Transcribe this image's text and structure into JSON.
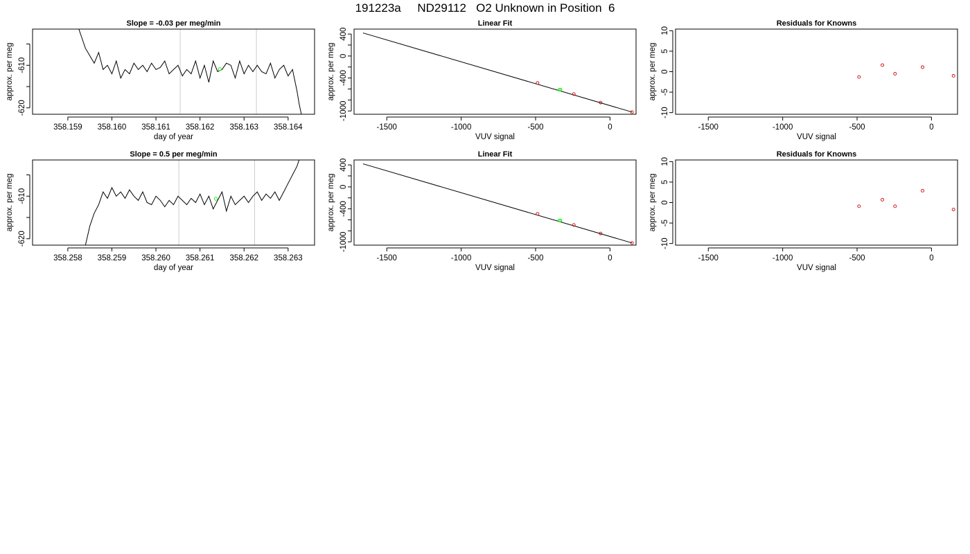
{
  "title": "191223a     ND29112   O2 Unknown in Position  6",
  "colors": {
    "axis": "#000000",
    "line": "#000000",
    "known_point": "#cc0000",
    "unknown_point": "#22ee22",
    "vline": "#cccccc"
  },
  "chart_data": [
    {
      "type": "line",
      "title": "Slope =  -0.03  per meg/min",
      "xlabel": "day of year",
      "ylabel": "approx. per meg",
      "xlim": [
        358.1582,
        358.1646
      ],
      "ylim": [
        -621.5,
        -601.5
      ],
      "x_ticks": [
        358.159,
        358.16,
        358.161,
        358.162,
        358.163,
        358.164
      ],
      "x_tick_labels": [
        "358.159",
        "358.160",
        "358.161",
        "358.162",
        "358.163",
        "358.164"
      ],
      "y_ticks": [
        -620,
        -615,
        -610,
        -605
      ],
      "y_tick_labels": [
        "-620",
        "",
        "-610",
        ""
      ],
      "vlines": [
        358.16155,
        358.16328
      ],
      "highlight": {
        "x": 358.16245,
        "y": -610.9
      },
      "series": [
        {
          "x": [
            358.15925,
            358.1594,
            358.1596,
            358.1597,
            358.1598,
            358.1599,
            358.16,
            358.1601,
            358.1602,
            358.1603,
            358.1604,
            358.1605,
            358.1606,
            358.1607,
            358.1608,
            358.1609,
            358.161,
            358.1611,
            358.1612,
            358.1613,
            358.1614,
            358.1615,
            358.1616,
            358.1617,
            358.1618,
            358.1619,
            358.162,
            358.1621,
            358.1622,
            358.1623,
            358.1624,
            358.1625,
            358.1626,
            358.1627,
            358.1628,
            358.1629,
            358.163,
            358.1631,
            358.1632,
            358.1633,
            358.1634,
            358.1635,
            358.1636,
            358.1637,
            358.1638,
            358.1639,
            358.164,
            358.1641,
            358.1642,
            358.16425,
            358.1643
          ],
          "y": [
            -601.5,
            -606,
            -609.5,
            -607,
            -611,
            -610,
            -612,
            -609,
            -613,
            -611,
            -612,
            -609.5,
            -611,
            -610,
            -611.5,
            -609.5,
            -611,
            -610.5,
            -609,
            -612,
            -611,
            -610,
            -612.5,
            -611,
            -612,
            -609,
            -613,
            -610,
            -614,
            -609,
            -611.5,
            -611,
            -609.5,
            -610,
            -613,
            -609,
            -612,
            -610,
            -611.5,
            -610,
            -611.5,
            -612,
            -609.5,
            -613,
            -611,
            -610,
            -612.5,
            -611,
            -616,
            -619,
            -621.5
          ]
        }
      ]
    },
    {
      "type": "scatter",
      "title": "Linear Fit",
      "xlabel": "VUV signal",
      "ylabel": "approx. per meg",
      "xlim": [
        -1720,
        175
      ],
      "ylim": [
        -1060,
        490
      ],
      "x_ticks": [
        -1500,
        -1000,
        -500,
        0
      ],
      "x_tick_labels": [
        "-1500",
        "-1000",
        "-500",
        "0"
      ],
      "y_ticks": [
        -1000,
        -800,
        -600,
        -400,
        -200,
        0,
        200,
        400
      ],
      "y_tick_labels": [
        "-1000",
        "",
        "",
        "-400",
        "",
        "0",
        "",
        "400"
      ],
      "fit_line": {
        "x": [
          -1660,
          148
        ],
        "y": [
          420,
          -1020
        ]
      },
      "known_points": {
        "x": [
          -487,
          -243,
          -63,
          148
        ],
        "y": [
          -490,
          -692,
          -848,
          -1020
        ]
      },
      "unknown_points": {
        "x": [
          -340,
          -333
        ],
        "y": [
          -614,
          -611
        ]
      }
    },
    {
      "type": "scatter",
      "title": "Residuals for Knowns",
      "xlabel": "VUV signal",
      "ylabel": "approx. per meg",
      "xlim": [
        -1720,
        175
      ],
      "ylim": [
        -10.4,
        10.4
      ],
      "x_ticks": [
        -1500,
        -1000,
        -500,
        0
      ],
      "x_tick_labels": [
        "-1500",
        "-1000",
        "-500",
        "0"
      ],
      "y_ticks": [
        -10,
        -5,
        0,
        5,
        10
      ],
      "y_tick_labels": [
        "-10",
        "-5",
        "0",
        "5",
        "10"
      ],
      "known_points": {
        "x": [
          -487,
          -330,
          -245,
          -60,
          148
        ],
        "y": [
          -1.3,
          1.6,
          -0.5,
          1.1,
          -1.0
        ]
      }
    },
    {
      "type": "line",
      "title": "Slope =  0.5  per meg/min",
      "xlabel": "day of year",
      "ylabel": "approx. per meg",
      "xlim": [
        358.2572,
        358.2636
      ],
      "ylim": [
        -621.5,
        -601.5
      ],
      "x_ticks": [
        358.258,
        358.259,
        358.26,
        358.261,
        358.262,
        358.263
      ],
      "x_tick_labels": [
        "358.258",
        "358.259",
        "358.260",
        "358.261",
        "358.262",
        "358.263"
      ],
      "y_ticks": [
        -620,
        -615,
        -610,
        -605
      ],
      "y_tick_labels": [
        "-620",
        "",
        "-610",
        ""
      ],
      "vlines": [
        358.26052,
        358.26224
      ],
      "highlight": {
        "x": 358.26136,
        "y": -610.6
      },
      "series": [
        {
          "x": [
            358.2584,
            358.2585,
            358.2586,
            358.2587,
            358.2588,
            358.2589,
            358.259,
            358.2591,
            358.2592,
            358.2593,
            358.2594,
            358.2595,
            358.2596,
            358.2597,
            358.2598,
            358.2599,
            358.26,
            358.2601,
            358.2602,
            358.2603,
            358.2604,
            358.2605,
            358.2606,
            358.2607,
            358.2608,
            358.2609,
            358.261,
            358.2611,
            358.2612,
            358.2613,
            358.2614,
            358.2615,
            358.2616,
            358.2617,
            358.2618,
            358.2619,
            358.262,
            358.2621,
            358.2622,
            358.2623,
            358.2624,
            358.2625,
            358.2626,
            358.2627,
            358.2628,
            358.2629,
            358.263,
            358.2631,
            358.2632,
            358.26325
          ],
          "y": [
            -621.5,
            -617,
            -614,
            -612,
            -609,
            -610.5,
            -608,
            -610,
            -609,
            -610.5,
            -608.5,
            -610,
            -611,
            -609,
            -611.5,
            -612,
            -610,
            -611,
            -612.5,
            -611,
            -612,
            -610,
            -611,
            -612,
            -610.5,
            -611.5,
            -609.5,
            -612,
            -610,
            -613,
            -611,
            -609,
            -613.5,
            -610,
            -612,
            -611,
            -610,
            -611.5,
            -610,
            -609,
            -611,
            -609.5,
            -610.5,
            -609,
            -611,
            -609,
            -607,
            -605,
            -603,
            -601.5
          ]
        }
      ]
    },
    {
      "type": "scatter",
      "title": "Linear Fit",
      "xlabel": "VUV signal",
      "ylabel": "approx. per meg",
      "xlim": [
        -1720,
        175
      ],
      "ylim": [
        -1060,
        490
      ],
      "x_ticks": [
        -1500,
        -1000,
        -500,
        0
      ],
      "x_tick_labels": [
        "-1500",
        "-1000",
        "-500",
        "0"
      ],
      "y_ticks": [
        -1000,
        -800,
        -600,
        -400,
        -200,
        0,
        200,
        400
      ],
      "y_tick_labels": [
        "-1000",
        "",
        "",
        "-400",
        "",
        "0",
        "",
        "400"
      ],
      "fit_line": {
        "x": [
          -1660,
          148
        ],
        "y": [
          420,
          -1020
        ]
      },
      "known_points": {
        "x": [
          -487,
          -243,
          -63,
          148
        ],
        "y": [
          -490,
          -692,
          -848,
          -1020
        ]
      },
      "unknown_points": {
        "x": [
          -340,
          -333
        ],
        "y": [
          -612,
          -609
        ]
      }
    },
    {
      "type": "scatter",
      "title": "Residuals for Knowns",
      "xlabel": "VUV signal",
      "ylabel": "approx. per meg",
      "xlim": [
        -1720,
        175
      ],
      "ylim": [
        -10.4,
        10.4
      ],
      "x_ticks": [
        -1500,
        -1000,
        -500,
        0
      ],
      "x_tick_labels": [
        "-1500",
        "-1000",
        "-500",
        "0"
      ],
      "y_ticks": [
        -10,
        -5,
        0,
        5,
        10
      ],
      "y_tick_labels": [
        "-10",
        "-5",
        "0",
        "5",
        "10"
      ],
      "known_points": {
        "x": [
          -487,
          -330,
          -245,
          -60,
          148
        ],
        "y": [
          -0.9,
          0.7,
          -0.9,
          2.9,
          -1.7
        ]
      }
    }
  ]
}
